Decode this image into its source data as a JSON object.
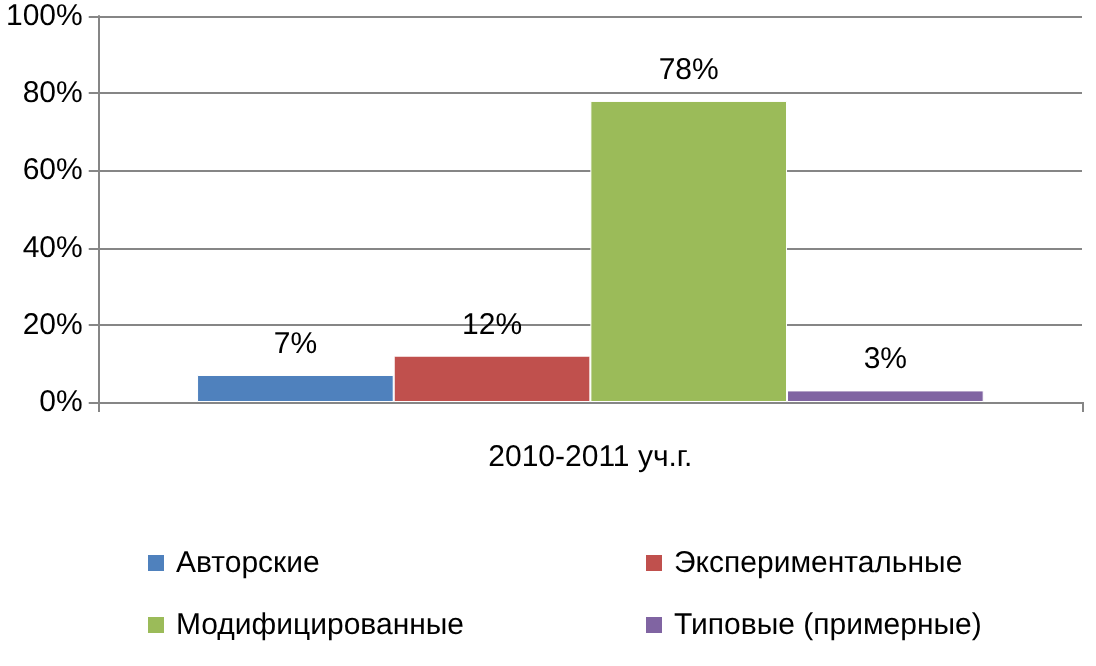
{
  "chart_data": {
    "type": "bar",
    "categories": [
      "2010-2011 уч.г."
    ],
    "series": [
      {
        "name": "Авторские",
        "color": "#4f81bd",
        "values": [
          7
        ],
        "value_labels": [
          "7%"
        ]
      },
      {
        "name": "Экспериментальные",
        "color": "#c0504d",
        "values": [
          12
        ],
        "value_labels": [
          "12%"
        ]
      },
      {
        "name": "Модифицированные",
        "color": "#9bbb59",
        "values": [
          78
        ],
        "value_labels": [
          "78%"
        ]
      },
      {
        "name": "Типовые (примерные)",
        "color": "#8064a2",
        "values": [
          3
        ],
        "value_labels": [
          "3%"
        ]
      }
    ],
    "ylim": [
      0,
      100
    ],
    "yticks": [
      {
        "value": 0,
        "label": "0%"
      },
      {
        "value": 20,
        "label": "20%"
      },
      {
        "value": 40,
        "label": "40%"
      },
      {
        "value": 60,
        "label": "60%"
      },
      {
        "value": 80,
        "label": "80%"
      },
      {
        "value": 100,
        "label": "100%"
      }
    ],
    "grid": true,
    "legend": "bottom"
  }
}
